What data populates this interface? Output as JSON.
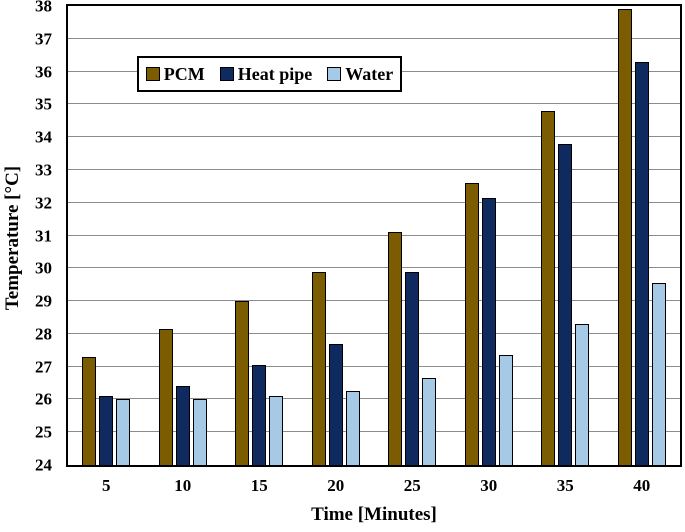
{
  "figure": {
    "background": "#ffffff",
    "plot_border_color": "#000000",
    "gridline_color": "#8c8c8c"
  },
  "chart_data": {
    "type": "bar",
    "title": "",
    "xlabel": "Time [Minutes]",
    "ylabel": "Temperature [°C]",
    "ylim": [
      24,
      38
    ],
    "ytick_step": 1,
    "yticks": [
      24,
      25,
      26,
      27,
      28,
      29,
      30,
      31,
      32,
      33,
      34,
      35,
      36,
      37,
      38
    ],
    "grid": "horizontal",
    "legend_position": "top-inside",
    "categories": [
      "5",
      "10",
      "15",
      "20",
      "25",
      "30",
      "35",
      "40"
    ],
    "series": [
      {
        "name": "PCM",
        "color": "#7C5C00",
        "values": [
          27.3,
          28.15,
          29.0,
          29.9,
          31.1,
          32.6,
          34.8,
          37.9
        ]
      },
      {
        "name": "Heat pipe",
        "color": "#0F2A5E",
        "values": [
          26.1,
          26.4,
          27.05,
          27.7,
          29.9,
          32.15,
          33.8,
          36.3
        ]
      },
      {
        "name": "Water",
        "color": "#A6C9E6",
        "values": [
          26.0,
          26.0,
          26.1,
          26.25,
          26.65,
          27.35,
          28.3,
          29.55
        ]
      }
    ]
  }
}
